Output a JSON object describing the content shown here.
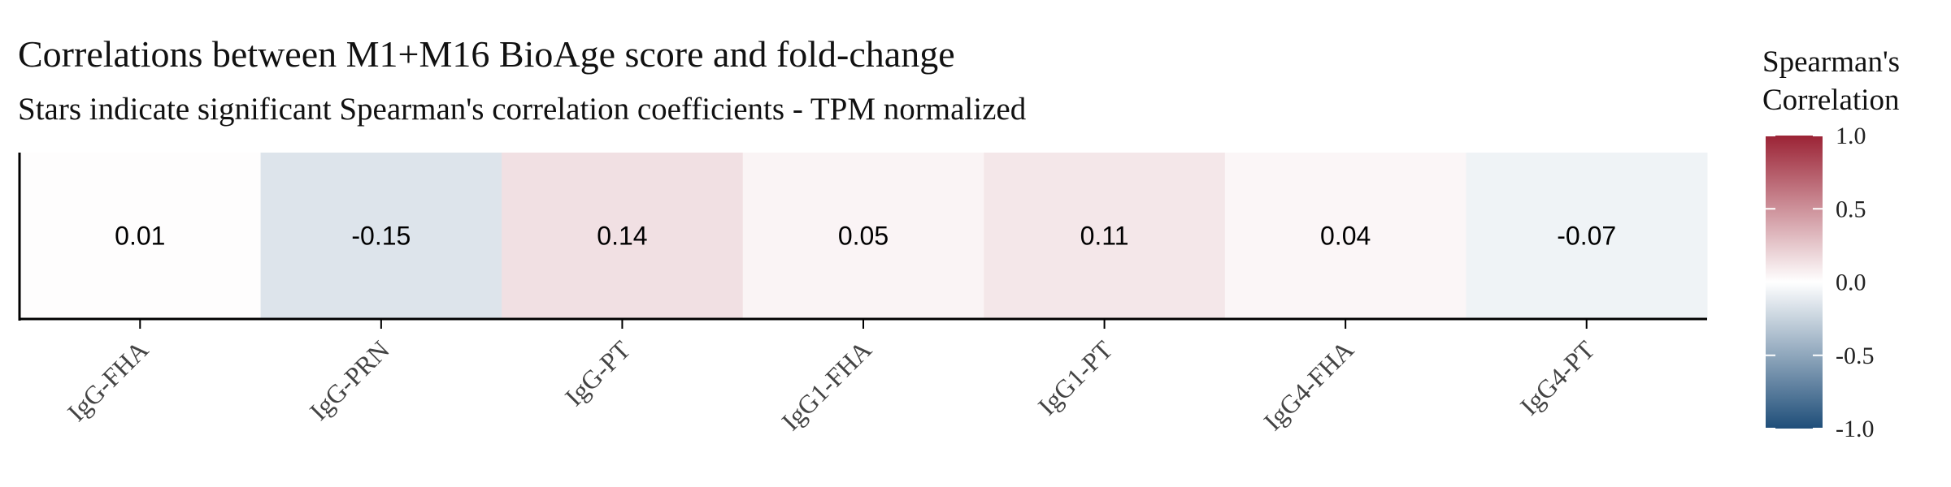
{
  "chart_data": {
    "type": "heatmap",
    "title": "Correlations between M1+M16 BioAge score and fold-change",
    "subtitle": "Stars indicate significant Spearman's correlation coefficients - TPM normalized",
    "categories": [
      "IgG-FHA",
      "IgG-PRN",
      "IgG-PT",
      "IgG1-FHA",
      "IgG1-PT",
      "IgG4-FHA",
      "IgG4-PT"
    ],
    "values": [
      0.01,
      -0.15,
      0.14,
      0.05,
      0.11,
      0.04,
      -0.07
    ],
    "labels": [
      "0.01",
      "-0.15",
      "0.14",
      "0.05",
      "0.11",
      "0.04",
      "-0.07"
    ],
    "legend": {
      "title": [
        "Spearman's",
        "Correlation"
      ],
      "range": [
        -1.0,
        1.0
      ],
      "ticks": [
        1.0,
        0.5,
        0.0,
        -0.5,
        -1.0
      ],
      "tick_labels": [
        "1.0",
        "0.5",
        "0.0",
        "-0.5",
        "-1.0"
      ],
      "colors": {
        "low": "#1f4e79",
        "mid": "#ffffff",
        "high": "#9b2335"
      }
    }
  }
}
